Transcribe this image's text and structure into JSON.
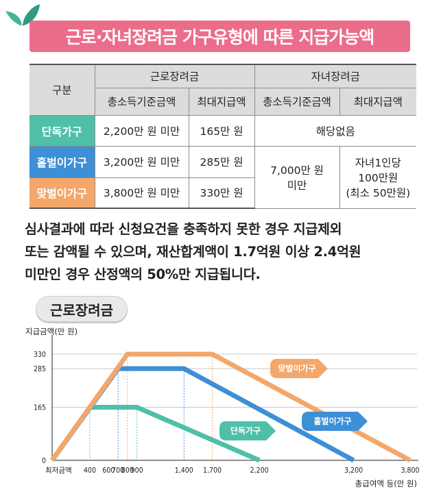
{
  "title": "근로·자녀장려금 가구유형에 따른 지급가능액",
  "colors": {
    "title_bg": "#ec6c8c",
    "single": "#4fbfa8",
    "single_earner": "#3d8fd6",
    "dual_earner": "#f3a76a"
  },
  "table": {
    "corner": "구분",
    "group_headers": [
      "근로장려금",
      "자녀장려금"
    ],
    "sub_headers": [
      "총소득기준금액",
      "최대지급액",
      "총소득기준금액",
      "최대지급액"
    ],
    "rows": [
      {
        "label": "단독가구",
        "income": "2,200만 원 미만",
        "max": "165만 원"
      },
      {
        "label": "홑벌이가구",
        "income": "3,200만 원 미만",
        "max": "285만 원"
      },
      {
        "label": "맞벌이가구",
        "income": "3,800만 원 미만",
        "max": "330만 원"
      }
    ],
    "child_na": "해당없음",
    "child_income_1": "7,000만 원",
    "child_income_2": "미만",
    "child_max_1": "자녀1인당",
    "child_max_2": "100만원",
    "child_max_3": "(최소 50만원)"
  },
  "notice": [
    "심사결과에 따라 신청요건을 충족하지 못한 경우 지급제외",
    "또는 감액될 수 있으며, 재산합계액이 1.7억원 이상 2.4억원",
    "미만인 경우 산정액의 50%만 지급됩니다."
  ],
  "chart_label": "근로장려금",
  "chart_data": {
    "type": "line",
    "title": "근로장려금",
    "ylabel": "지급금액(만 원)",
    "xlabel": "총급여액 등(만 원)",
    "x_origin_label": "최저금액",
    "xlim": [
      0,
      3800
    ],
    "ylim": [
      0,
      330
    ],
    "x_ticks": [
      400,
      600,
      700,
      800,
      900,
      1400,
      1700,
      2200,
      3200,
      3800
    ],
    "y_ticks": [
      0,
      165,
      285,
      330
    ],
    "series": [
      {
        "name": "단독가구",
        "color": "#4fbfa8",
        "x": [
          0,
          400,
          900,
          2200
        ],
        "y": [
          0,
          165,
          165,
          0
        ]
      },
      {
        "name": "홑벌이가구",
        "color": "#3d8fd6",
        "x": [
          0,
          700,
          1400,
          3200
        ],
        "y": [
          0,
          285,
          285,
          0
        ]
      },
      {
        "name": "맞벌이가구",
        "color": "#f3a76a",
        "x": [
          0,
          800,
          1700,
          3800
        ],
        "y": [
          0,
          330,
          330,
          0
        ]
      }
    ],
    "grid": true
  }
}
